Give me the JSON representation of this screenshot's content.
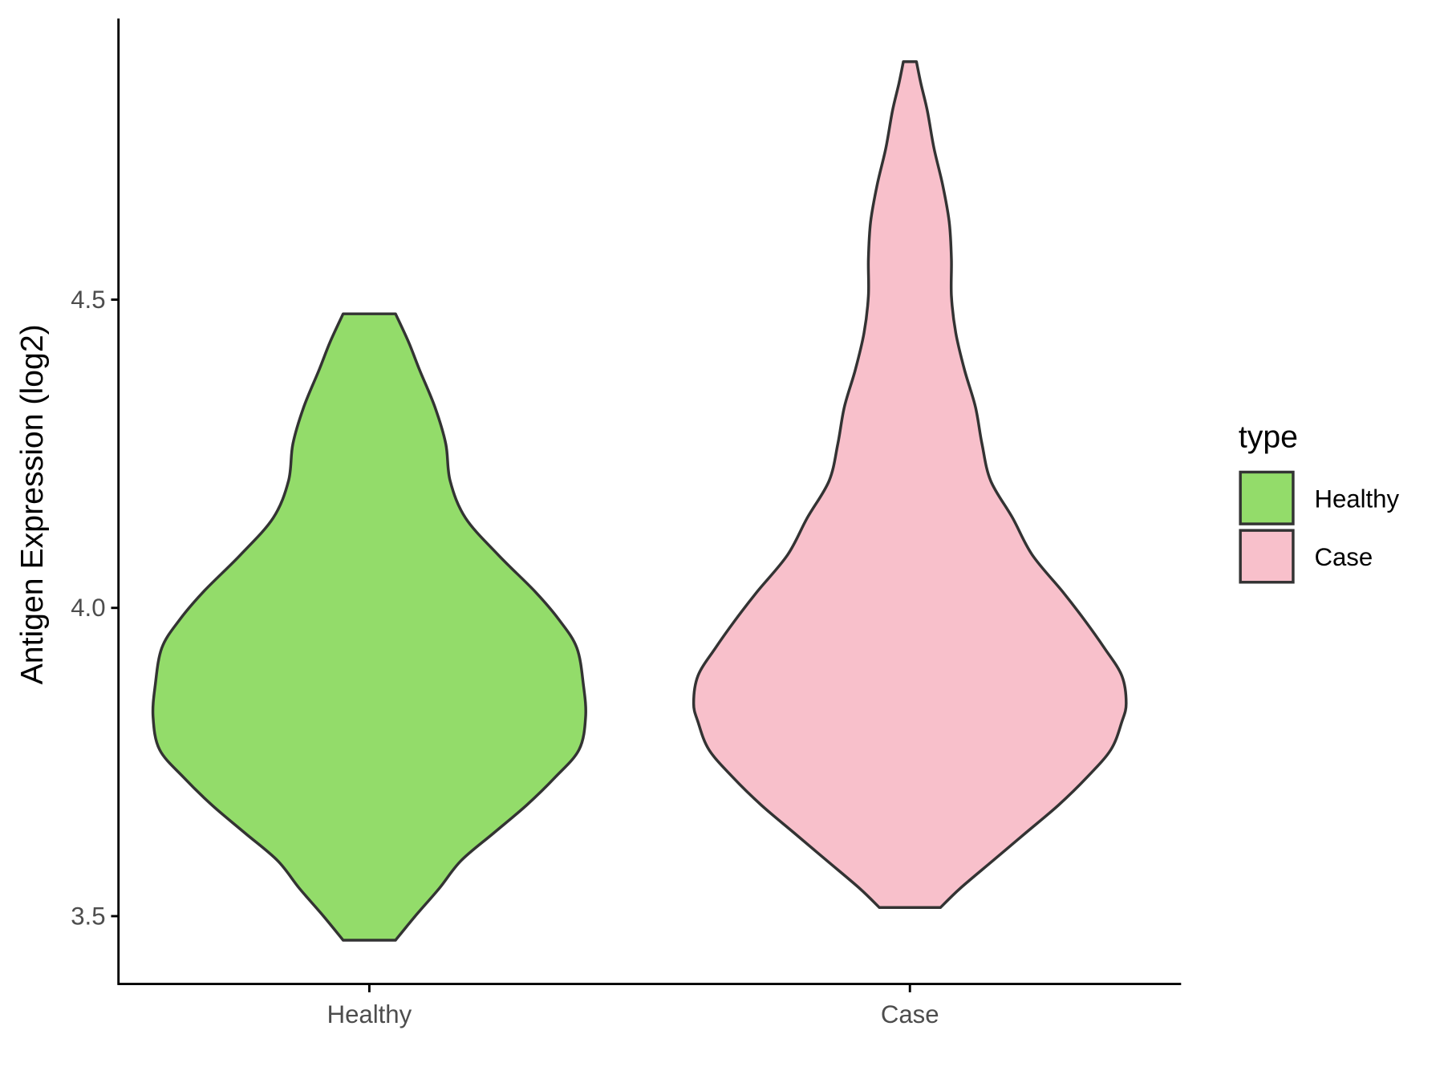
{
  "chart_data": {
    "type": "violin",
    "ylabel": "Antigen Expression (log2)",
    "categories": [
      "Healthy",
      "Case"
    ],
    "legend_title": "type",
    "legend": "right",
    "ylim": [
      3.39,
      4.956
    ],
    "yticks": [
      {
        "value": 3.5,
        "label": "3.5"
      },
      {
        "value": 4,
        "label": "4.0"
      },
      {
        "value": 4.5,
        "label": "4.5"
      }
    ],
    "series": [
      {
        "name": "Healthy",
        "color": "#93dc6a",
        "values": [
          3.461,
          3.5,
          3.545,
          3.59,
          3.635,
          3.68,
          3.725,
          3.77,
          3.823,
          3.875,
          3.935,
          3.98,
          4.026,
          4.086,
          4.146,
          4.206,
          4.266,
          4.326,
          4.386,
          4.431,
          4.477
        ],
        "density": [
          0.12,
          0.21,
          0.32,
          0.42,
          0.57,
          0.72,
          0.85,
          0.96,
          0.99,
          0.98,
          0.95,
          0.87,
          0.76,
          0.59,
          0.44,
          0.37,
          0.35,
          0.3,
          0.23,
          0.18,
          0.12
        ]
      },
      {
        "name": "Case",
        "color": "#f8c0cb",
        "values": [
          3.514,
          3.545,
          3.59,
          3.635,
          3.68,
          3.725,
          3.77,
          3.815,
          3.845,
          3.89,
          3.935,
          3.98,
          4.026,
          4.086,
          4.146,
          4.206,
          4.266,
          4.326,
          4.386,
          4.446,
          4.506,
          4.566,
          4.626,
          4.686,
          4.746,
          4.806,
          4.851,
          4.886
        ],
        "density": [
          0.14,
          0.23,
          0.38,
          0.53,
          0.68,
          0.81,
          0.92,
          0.97,
          0.99,
          0.97,
          0.89,
          0.8,
          0.7,
          0.56,
          0.47,
          0.37,
          0.33,
          0.3,
          0.25,
          0.21,
          0.19,
          0.19,
          0.18,
          0.15,
          0.11,
          0.08,
          0.05,
          0.03
        ]
      }
    ]
  }
}
